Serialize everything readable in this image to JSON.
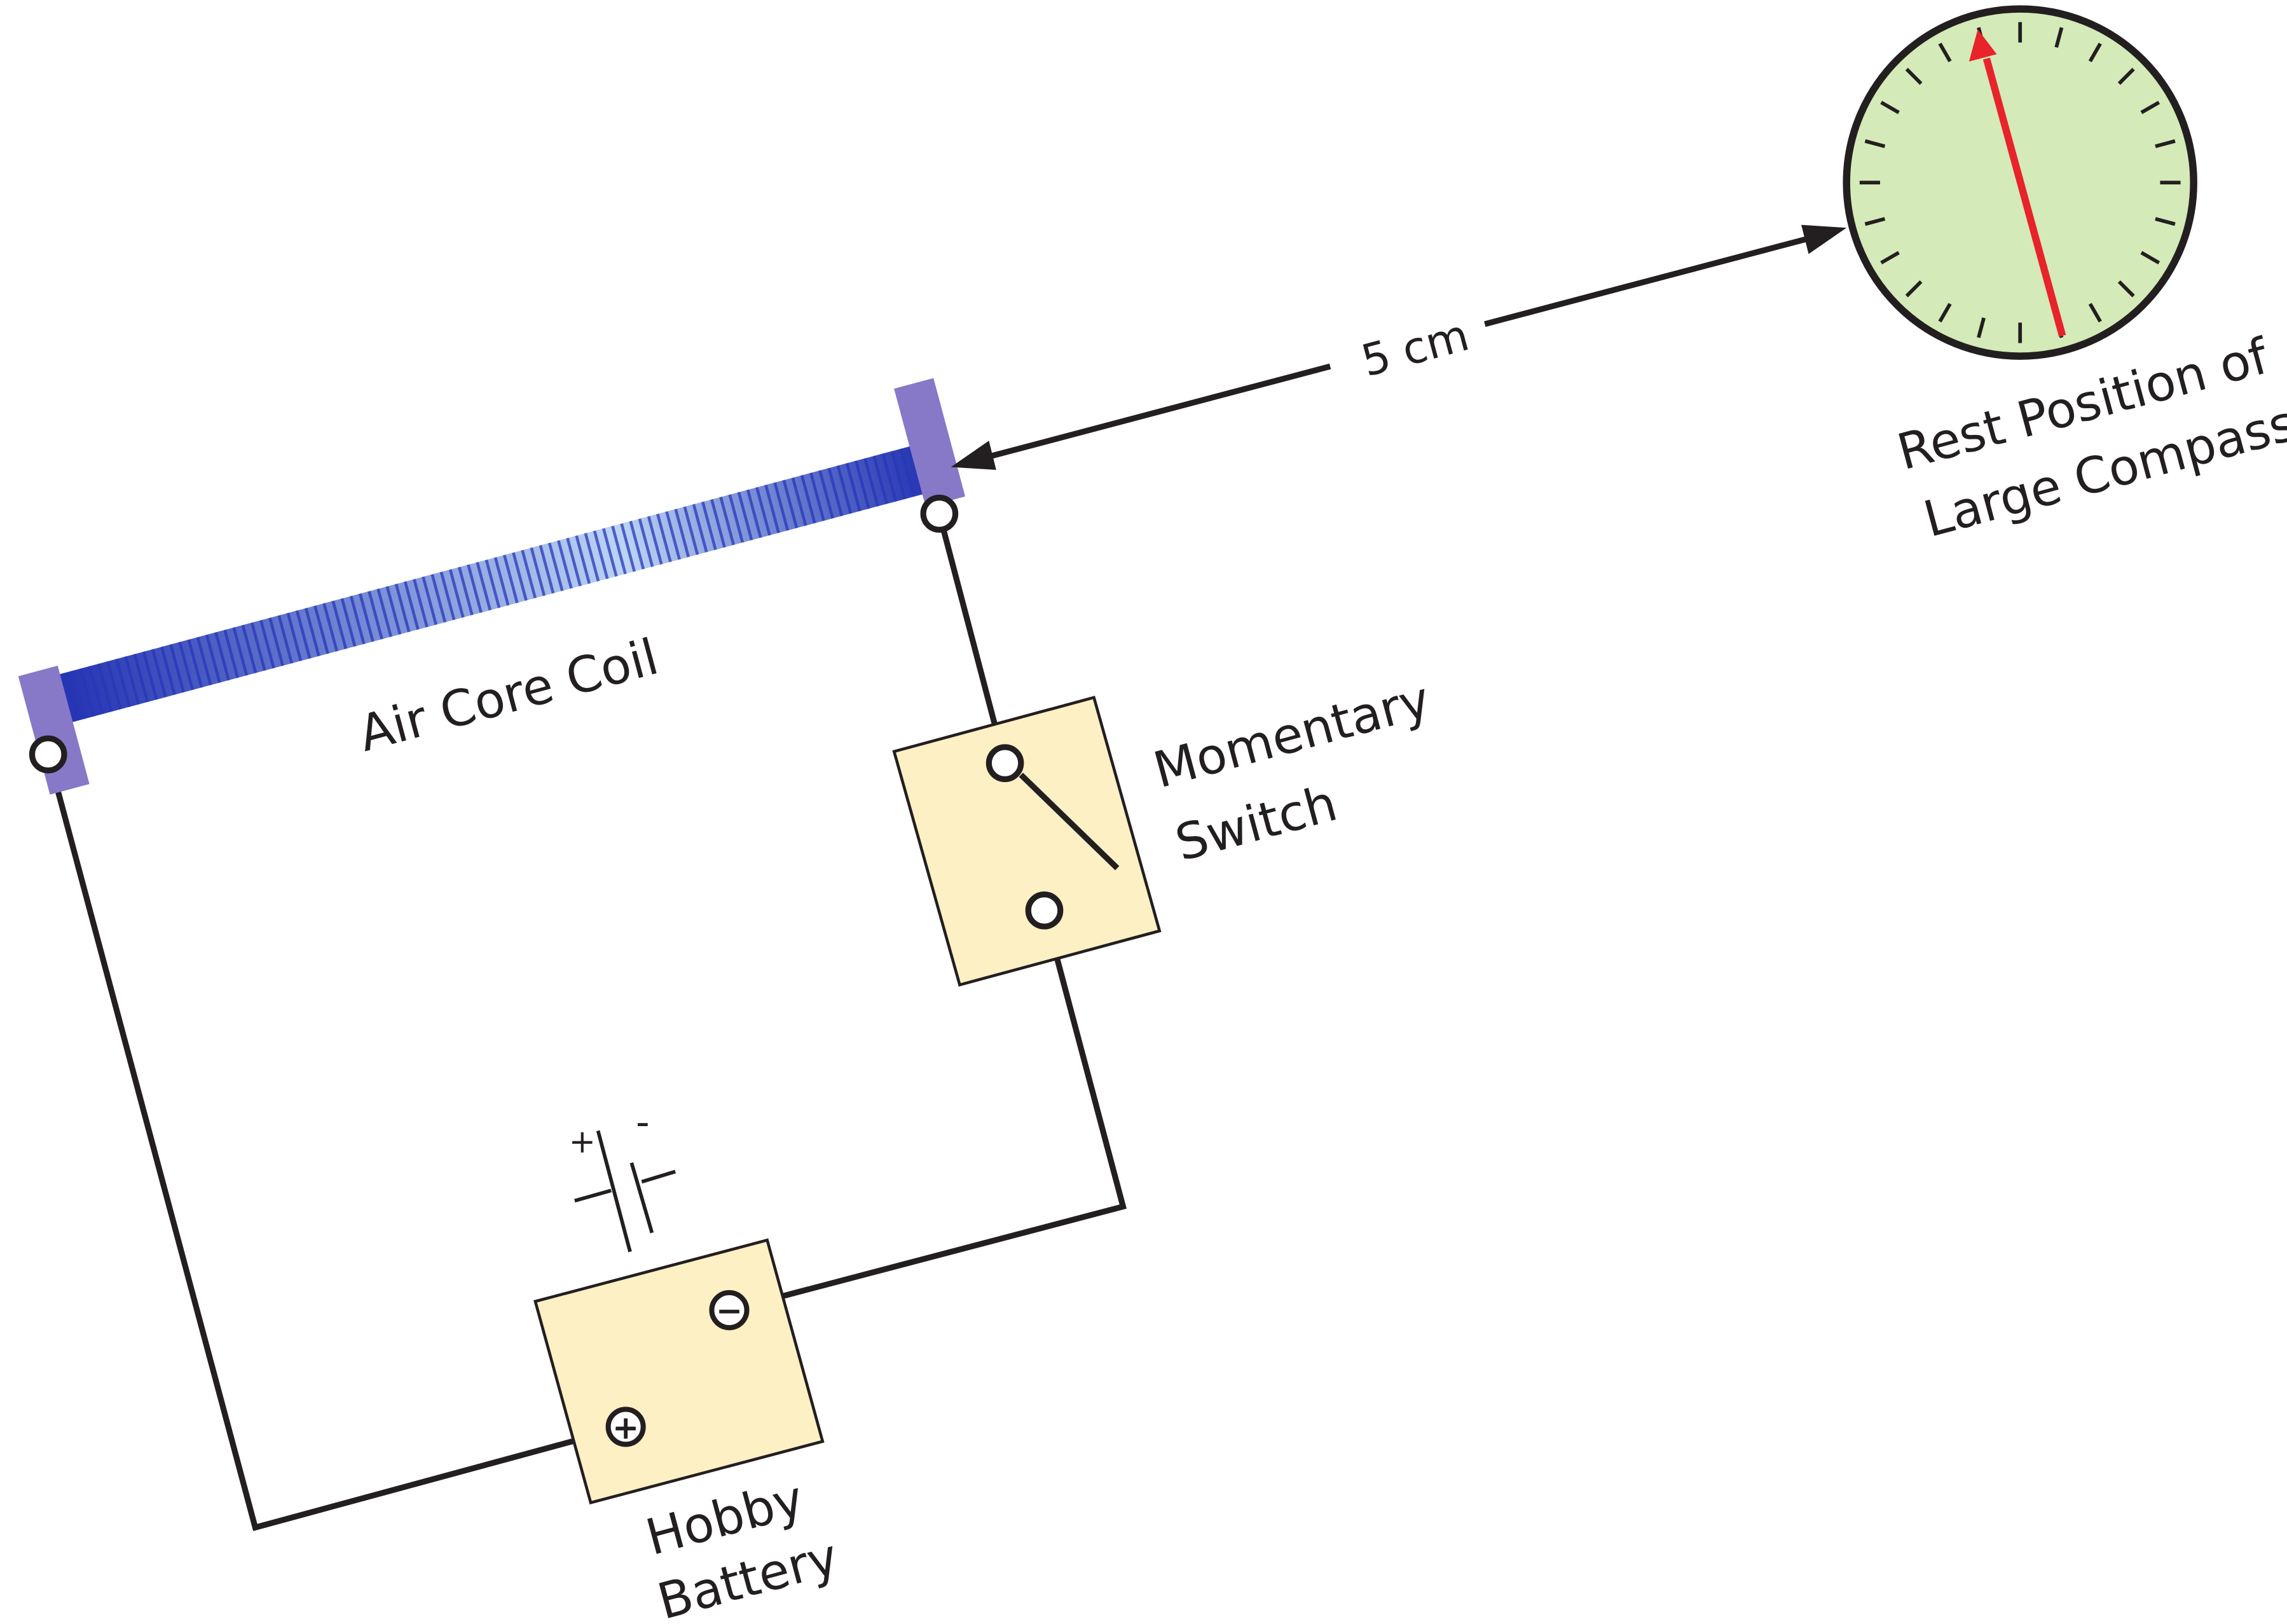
{
  "labels": {
    "coil": "Air Core Coil",
    "switch_line1": "Momentary",
    "switch_line2": "Switch",
    "battery_line1": "Hobby",
    "battery_line2": "Battery",
    "distance": "5 cm",
    "compass_line1": "Rest Position of",
    "compass_line2": "Large Compass",
    "symbol_plus": "+",
    "symbol_minus": "-",
    "terminal_plus": "+",
    "terminal_minus": "−"
  },
  "colors": {
    "wire": "#231f20",
    "box_fill": "#fdf0c4",
    "coil_dark": "#2233bb",
    "coil_light": "#a8c6ee",
    "coil_end": "#8878c8",
    "compass_face": "#d4eab8",
    "needle": "#e8232a"
  },
  "compass": {
    "tick_count": 24
  }
}
